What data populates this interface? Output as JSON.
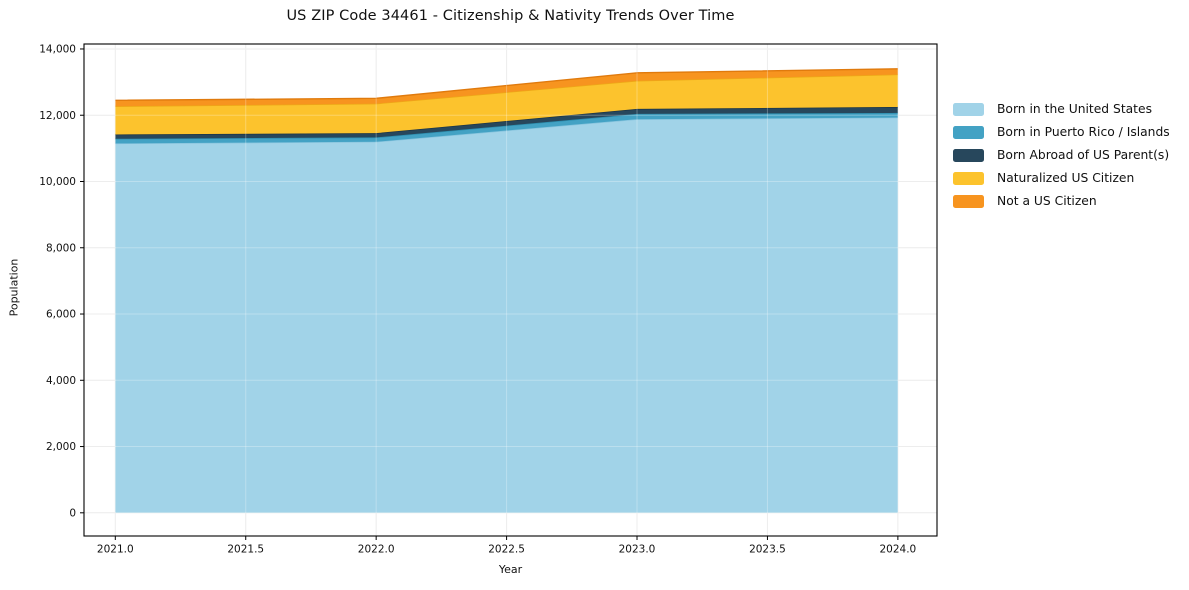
{
  "chart_data": {
    "type": "area",
    "stacked": true,
    "title": "US ZIP Code 34461 - Citizenship & Nativity Trends Over Time",
    "xlabel": "Year",
    "ylabel": "Population",
    "x": [
      2021,
      2022,
      2023,
      2024
    ],
    "series": [
      {
        "name": "Born in the United States",
        "color": "#a1d3e8",
        "edge": "#85c3dd",
        "values": [
          11150,
          11200,
          11880,
          11930
        ]
      },
      {
        "name": "Born in Puerto Rico / Islands",
        "color": "#43a2c4",
        "edge": "#2c8dad",
        "values": [
          140,
          130,
          160,
          140
        ]
      },
      {
        "name": "Born Abroad of US Parent(s)",
        "color": "#27475c",
        "edge": "#1c3547",
        "values": [
          130,
          130,
          150,
          180
        ]
      },
      {
        "name": "Naturalized US Citizen",
        "color": "#fcc32d",
        "edge": "#eda816",
        "values": [
          850,
          890,
          850,
          980
        ]
      },
      {
        "name": "Not a US Citizen",
        "color": "#f7941f",
        "edge": "#e07a0d",
        "values": [
          180,
          160,
          240,
          170
        ]
      }
    ],
    "totals": [
      12450,
      12510,
      13280,
      13400
    ],
    "x_ticks": {
      "values": [
        2021.0,
        2021.5,
        2022.0,
        2022.5,
        2023.0,
        2023.5,
        2024.0
      ],
      "labels": [
        "2021.0",
        "2021.5",
        "2022.0",
        "2022.5",
        "2023.0",
        "2023.5",
        "2024.0"
      ]
    },
    "y_ticks": {
      "values": [
        0,
        2000,
        4000,
        6000,
        8000,
        10000,
        12000,
        14000
      ],
      "labels": [
        "0",
        "2,000",
        "4,000",
        "6,000",
        "8,000",
        "10,000",
        "12,000",
        "14,000"
      ]
    },
    "xlim": [
      2020.88,
      2024.15
    ],
    "ylim": [
      -700,
      14150
    ],
    "grid": true,
    "grid_color": "#e7e7e7",
    "spine_color": "#000000",
    "legend_position": "right"
  }
}
